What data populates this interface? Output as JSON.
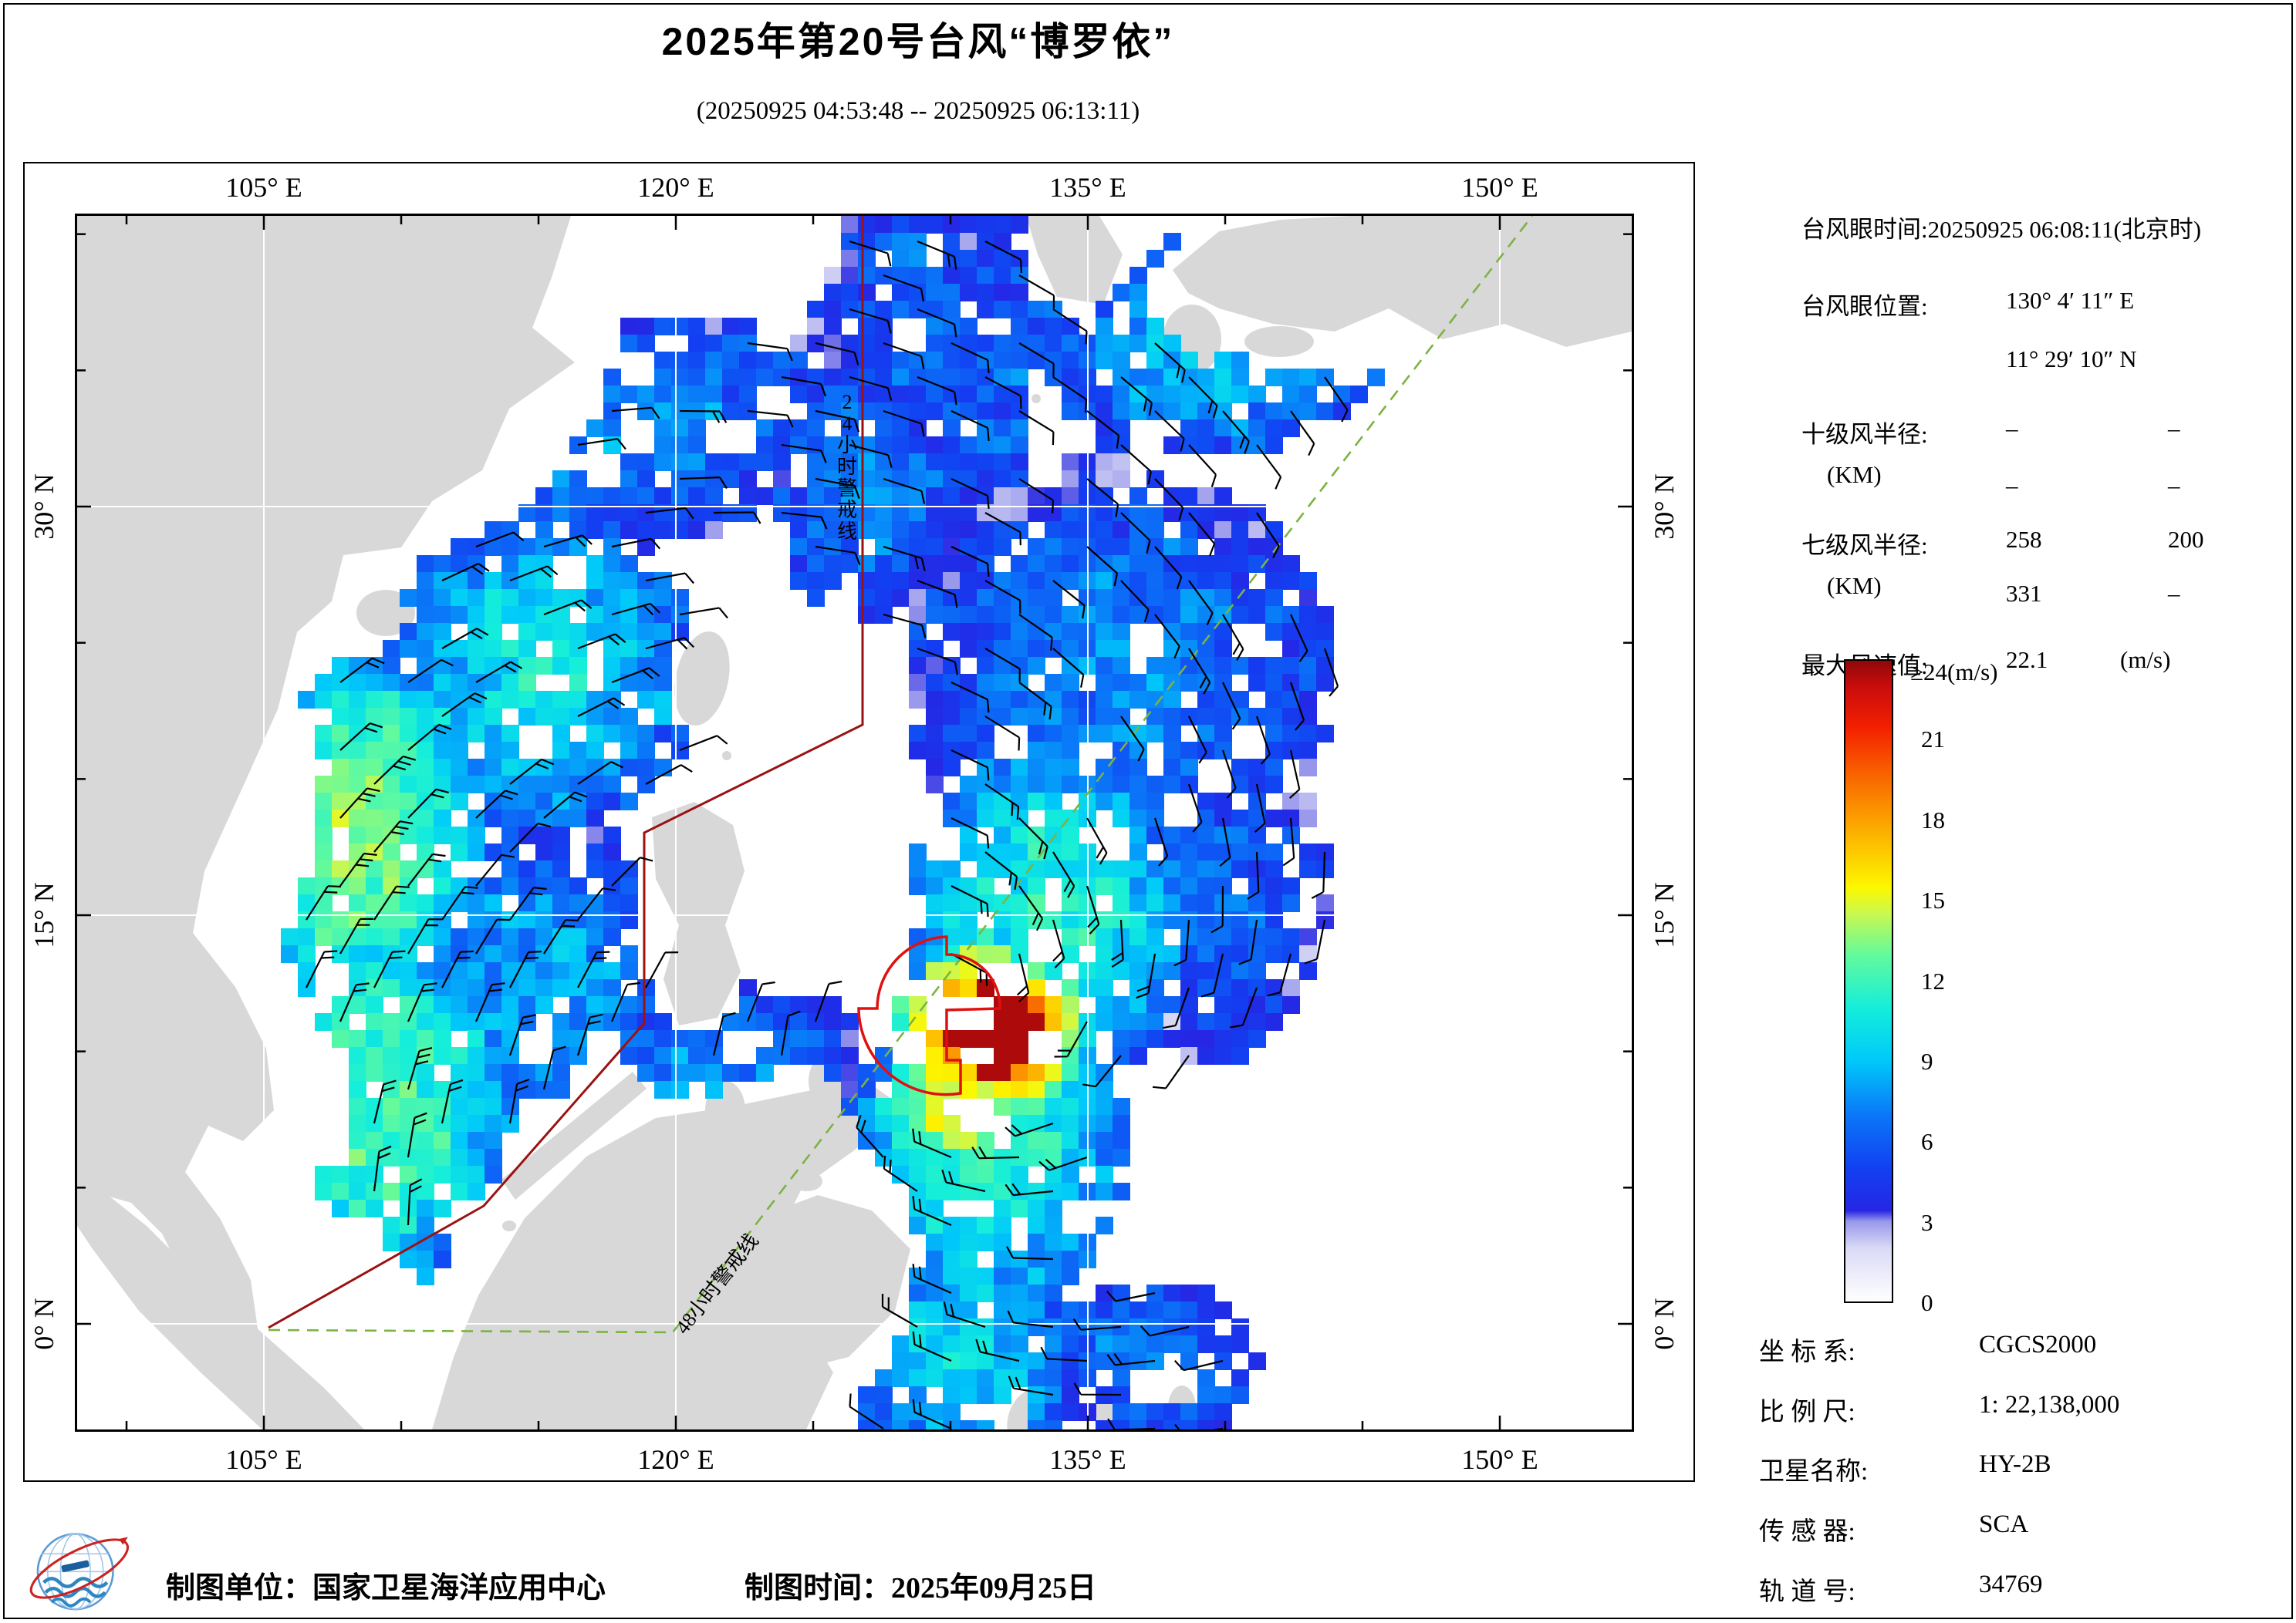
{
  "title": "2025年第20号台风“博罗依”",
  "subtitle": "(20250925 04:53:48 -- 20250925 06:13:11)",
  "axes": {
    "top": [
      "105° E",
      "120° E",
      "135° E",
      "150° E"
    ],
    "bottom": [
      "105° E",
      "120° E",
      "135° E",
      "150° E"
    ],
    "left": [
      "30° N",
      "15° N",
      "0° N"
    ],
    "right": [
      "30° N",
      "15° N",
      "0° N"
    ]
  },
  "map": {
    "warning_line_24h_label": "24小时警戒线",
    "warning_line_48h_label": "48小时警戒线",
    "colors": {
      "land": "#d8d8d8",
      "ocean": "#ffffff",
      "grid": "#ffffff",
      "warning_24h": "#9a1212",
      "warning_48h": "#7cb342",
      "typhoon_symbol": "#e01010",
      "wind_barb": "#000000",
      "frame": "#000000"
    }
  },
  "info_panel": {
    "eye_time_label": "台风眼时间:",
    "eye_time_value": "20250925 06:08:11(北京时)",
    "eye_pos_label": "台风眼位置:",
    "eye_lon": "130° 4′ 11″ E",
    "eye_lat": "11° 29′ 10″ N",
    "r10_label": "十级风半径:",
    "r10_unit": "(KM)",
    "r10_values": [
      "–",
      "–",
      "–",
      "–"
    ],
    "r7_label": "七级风半径:",
    "r7_unit": "(KM)",
    "r7_values": [
      "258",
      "200",
      "331",
      "–"
    ],
    "max_wind_label": "最大风速值:",
    "max_wind_value": "22.1",
    "max_wind_unit": "(m/s)"
  },
  "colorbar": {
    "top_label": "≥24(m/s)",
    "tick_values": [
      21,
      18,
      15,
      12,
      9,
      6,
      3,
      0
    ],
    "tick_labels": [
      "21",
      "18",
      "15",
      "12",
      "9",
      "6",
      "3",
      "0"
    ],
    "min": 0,
    "max": 24,
    "stops": [
      {
        "v": 0,
        "c": "#ffffff"
      },
      {
        "v": 2,
        "c": "#dadaf6"
      },
      {
        "v": 3,
        "c": "#9898ec"
      },
      {
        "v": 3.4,
        "c": "#2626e4"
      },
      {
        "v": 5,
        "c": "#1240f2"
      },
      {
        "v": 7,
        "c": "#0a78f8"
      },
      {
        "v": 9,
        "c": "#00c8fa"
      },
      {
        "v": 11,
        "c": "#14eeda"
      },
      {
        "v": 13,
        "c": "#64fa9b"
      },
      {
        "v": 14.5,
        "c": "#c8f852"
      },
      {
        "v": 15.5,
        "c": "#fdf800"
      },
      {
        "v": 17,
        "c": "#fdc400"
      },
      {
        "v": 18.5,
        "c": "#fb9000"
      },
      {
        "v": 20,
        "c": "#f85a00"
      },
      {
        "v": 21.5,
        "c": "#f32000"
      },
      {
        "v": 23,
        "c": "#cb0d0d"
      },
      {
        "v": 24,
        "c": "#8f0808"
      }
    ]
  },
  "metadata": {
    "rows": [
      {
        "label": "坐 标 系:",
        "value": "CGCS2000"
      },
      {
        "label": "比 例 尺:",
        "value": "1: 22,138,000"
      },
      {
        "label": "卫星名称:",
        "value": "HY-2B"
      },
      {
        "label": "传 感 器:",
        "value": "SCA"
      },
      {
        "label": "轨 道 号:",
        "value": "34769"
      }
    ]
  },
  "footer": {
    "org_label": "制图单位：",
    "org_value": "国家卫星海洋应用中心",
    "time_label": "制图时间：",
    "time_value": "2025年09月25日"
  }
}
